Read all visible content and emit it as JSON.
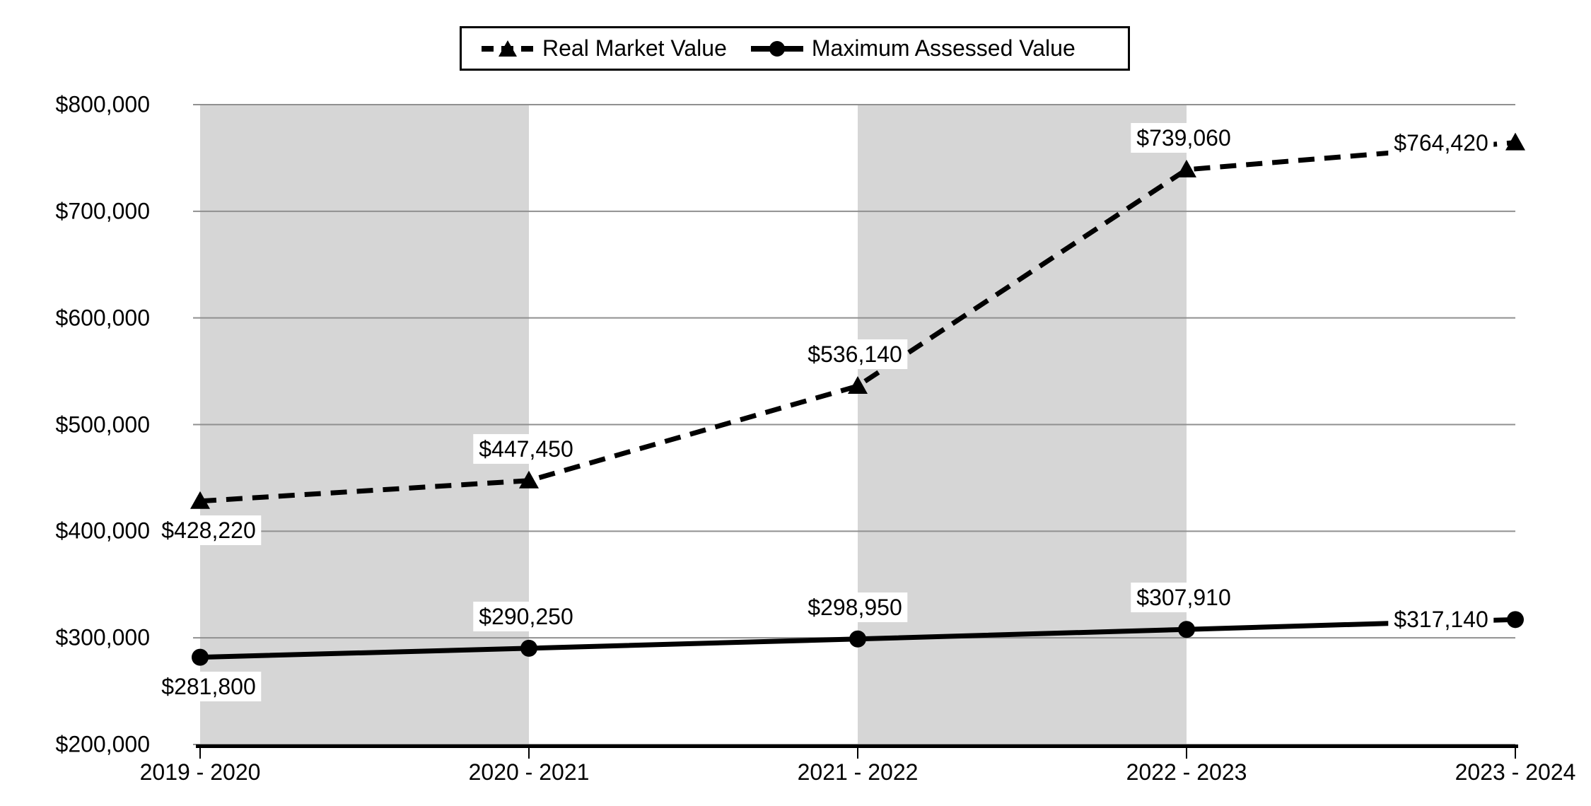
{
  "chart_data": {
    "type": "line",
    "title": "",
    "categories": [
      "2019 - 2020",
      "2020 - 2021",
      "2021 - 2022",
      "2022 - 2023",
      "2023 - 2024"
    ],
    "series": [
      {
        "name": "Real Market Value",
        "values": [
          428220,
          447450,
          536140,
          739060,
          764420
        ],
        "labels": [
          "$428,220",
          "$447,450",
          "$536,140",
          "$739,060",
          "$764,420"
        ],
        "line_style": "dashed",
        "marker": "triangle",
        "label_placements": [
          "below",
          "above",
          "above",
          "above",
          "left"
        ]
      },
      {
        "name": "Maximum Assessed Value",
        "values": [
          281800,
          290250,
          298950,
          307910,
          317140
        ],
        "labels": [
          "$281,800",
          "$290,250",
          "$298,950",
          "$307,910",
          "$317,140"
        ],
        "line_style": "solid",
        "marker": "circle",
        "label_placements": [
          "below",
          "above",
          "above",
          "above",
          "left"
        ]
      }
    ],
    "y_axis": {
      "min": 200000,
      "max": 800000,
      "step": 100000,
      "tick_labels": [
        "$200,000",
        "$300,000",
        "$400,000",
        "$500,000",
        "$600,000",
        "$700,000",
        "$800,000"
      ]
    },
    "x_axis": {
      "tick_labels": [
        "2019 - 2020",
        "2020 - 2021",
        "2021 - 2022",
        "2022 - 2023",
        "2023 - 2024"
      ]
    },
    "legend_position": "top",
    "grid": "horizontal",
    "plot_bands": {
      "shaded_intervals": [
        0,
        2
      ]
    },
    "colors": {
      "series": "#000000",
      "gridline": "#909090",
      "band": "#d6d6d6",
      "background": "#ffffff",
      "label_background": "#ffffff"
    }
  }
}
